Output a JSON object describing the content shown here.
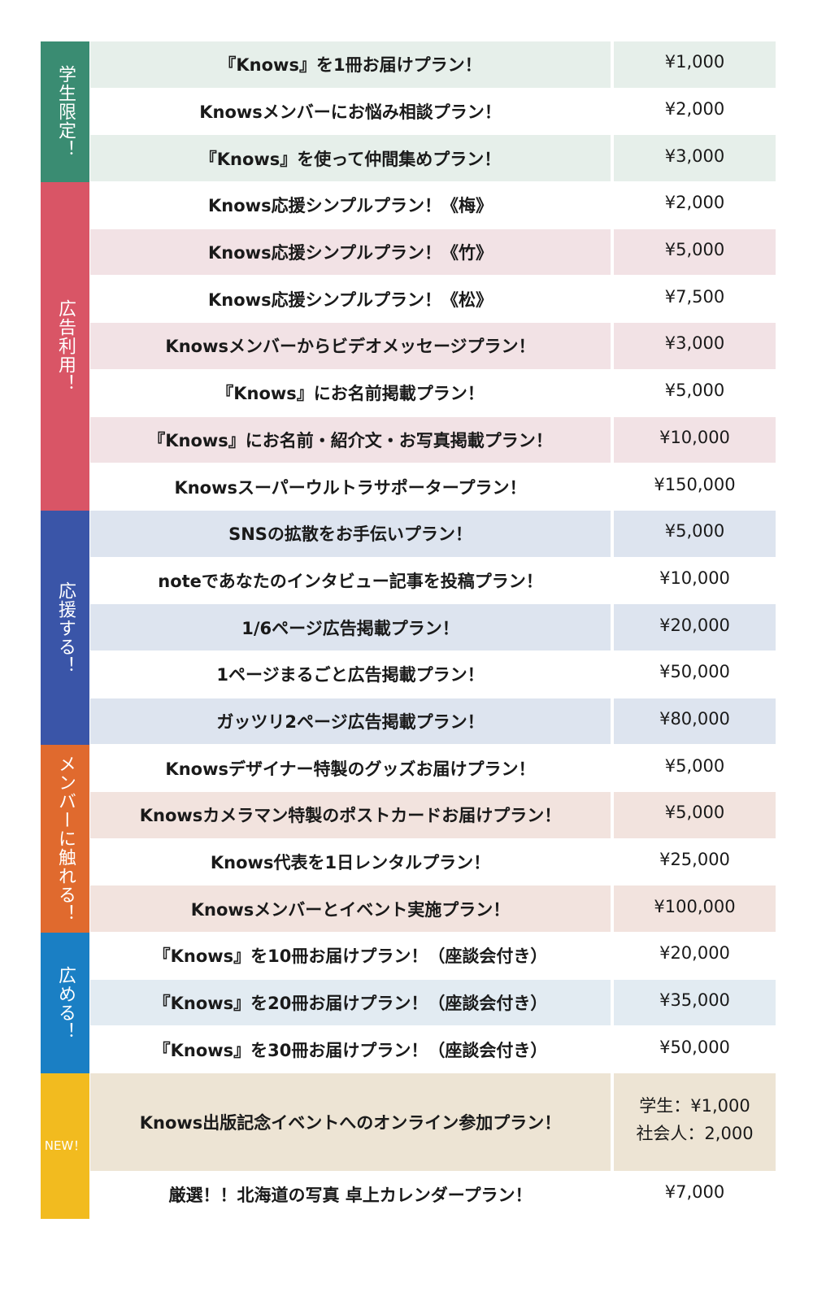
{
  "groups": [
    {
      "label": "学生限定！",
      "color": "#3a8c72",
      "tint": "#e6efea",
      "tint_first": true,
      "rows": [
        {
          "plan": "『Knows』を1冊お届けプラン！",
          "price": "¥1,000"
        },
        {
          "plan": "Knowsメンバーにお悩み相談プラン！",
          "price": "¥2,000"
        },
        {
          "plan": "『Knows』を使って仲間集めプラン！",
          "price": "¥3,000"
        }
      ]
    },
    {
      "label": "広告利用！",
      "color": "#d95566",
      "tint": "#f2e2e5",
      "tint_first": false,
      "rows": [
        {
          "plan": "Knows応援シンプルプラン！《梅》",
          "price": "¥2,000"
        },
        {
          "plan": "Knows応援シンプルプラン！《竹》",
          "price": "¥5,000"
        },
        {
          "plan": "Knows応援シンプルプラン！《松》",
          "price": "¥7,500"
        },
        {
          "plan": "Knowsメンバーからビデオメッセージプラン！",
          "price": "¥3,000"
        },
        {
          "plan": "『Knows』にお名前掲載プラン！",
          "price": "¥5,000"
        },
        {
          "plan": "『Knows』にお名前・紹介文・お写真掲載プラン！",
          "price": "¥10,000"
        },
        {
          "plan": "Knowsスーパーウルトラサポータープラン！",
          "price": "¥150,000"
        }
      ]
    },
    {
      "label": "応援する！",
      "color": "#3a55a8",
      "tint": "#dde4ef",
      "tint_first": true,
      "rows": [
        {
          "plan": "SNSの拡散をお手伝いプラン！",
          "price": "¥5,000"
        },
        {
          "plan": "noteであなたのインタビュー記事を投稿プラン！",
          "price": "¥10,000"
        },
        {
          "plan": "1/6ページ広告掲載プラン！",
          "price": "¥20,000"
        },
        {
          "plan": "1ページまるごと広告掲載プラン！",
          "price": "¥50,000"
        },
        {
          "plan": "ガッツリ2ページ広告掲載プラン！",
          "price": "¥80,000"
        }
      ]
    },
    {
      "label": "メンバーに触れる！",
      "color": "#e06a2e",
      "tint": "#f2e3de",
      "tint_first": false,
      "rows": [
        {
          "plan": "Knowsデザイナー特製のグッズお届けプラン！",
          "price": "¥5,000"
        },
        {
          "plan": "Knowsカメラマン特製のポストカードお届けプラン！",
          "price": "¥5,000"
        },
        {
          "plan": "Knows代表を1日レンタルプラン！",
          "price": "¥25,000"
        },
        {
          "plan": "Knowsメンバーとイベント実施プラン！",
          "price": "¥100,000"
        }
      ]
    },
    {
      "label": "広める！",
      "color": "#1a7fc4",
      "tint": "#e2ebf2",
      "tint_first": false,
      "rows": [
        {
          "plan": "『Knows』を10冊お届けプラン！（座談会付き）",
          "price": "¥20,000"
        },
        {
          "plan": "『Knows』を20冊お届けプラン！（座談会付き）",
          "price": "¥35,000"
        },
        {
          "plan": "『Knows』を30冊お届けプラン！（座談会付き）",
          "price": "¥50,000"
        }
      ]
    },
    {
      "label": "NEW！",
      "color": "#f2bb1f",
      "tint": "#ede4d4",
      "tint_first": true,
      "new": true,
      "rows": [
        {
          "plan": "Knows出版記念イベントへのオンライン参加プラン！",
          "price": "学生：¥1,000",
          "price2": "社会人：2,000",
          "double": true
        },
        {
          "plan": "厳選！！北海道の写真 卓上カレンダープラン！",
          "price": "¥7,000"
        }
      ]
    }
  ]
}
